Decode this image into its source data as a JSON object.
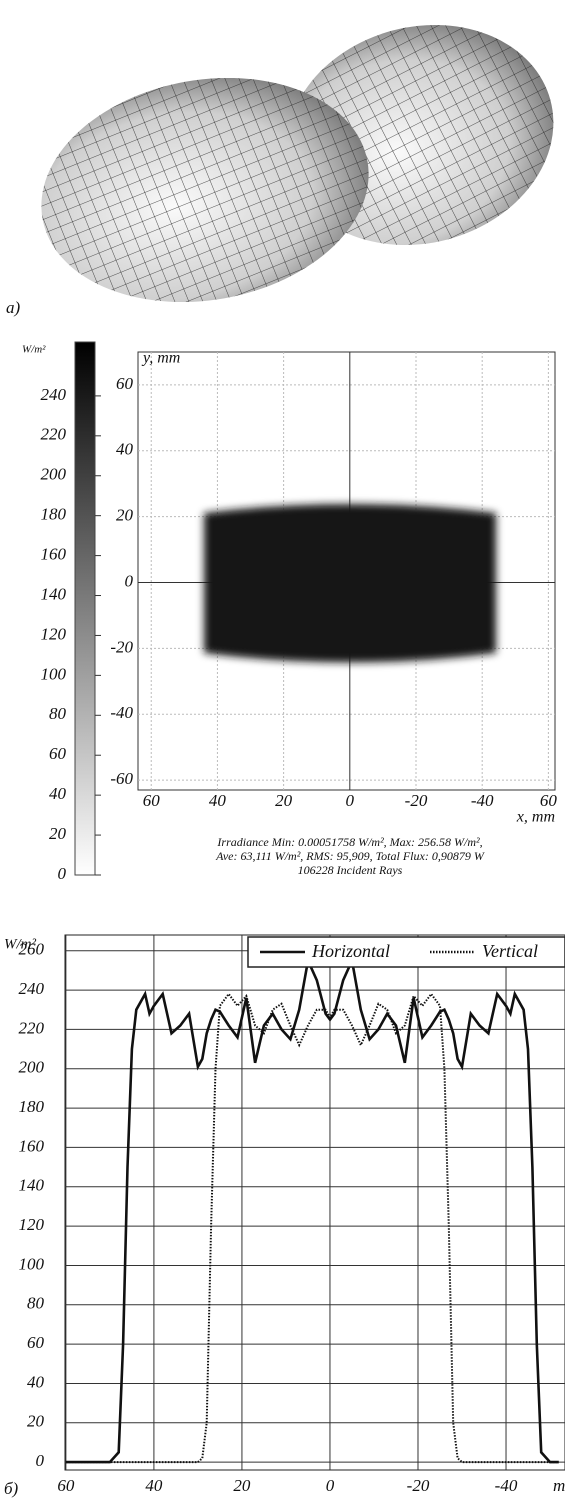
{
  "chart_data": [
    {
      "type": "heatmap",
      "panel_label": "a)",
      "colorbar_label": "W/m²",
      "colorbar_ticks": [
        0,
        20,
        40,
        60,
        80,
        100,
        120,
        140,
        160,
        180,
        200,
        220,
        240
      ],
      "clim": [
        0,
        267
      ],
      "xlabel": "x, mm",
      "ylabel": "y, mm",
      "xlim": [
        64,
        -62
      ],
      "ylim": [
        -63,
        70
      ],
      "xticks": [
        60,
        40,
        20,
        0,
        -20,
        -40,
        {
          "value": -60,
          "label": "60"
        }
      ],
      "yticks": [
        60,
        40,
        20,
        0,
        -20,
        -40,
        -60
      ],
      "grid": true,
      "caption": [
        "Irradiance   Min: 0.00051758 W/m², Max: 256.58 W/m²,",
        "Ave: 63,111 W/m², RMS: 95,909, Total Flux: 0,90879 W",
        "106228 Incident Rays"
      ]
    },
    {
      "type": "line",
      "panel_label": "б)",
      "ylabel": "W/m²",
      "xlabel": "m",
      "xlim": [
        60.2,
        -53.4
      ],
      "ylim": [
        -4,
        268
      ],
      "xticks": [
        60,
        40,
        20,
        0,
        -20,
        -40
      ],
      "yticks": [
        0,
        20,
        40,
        60,
        80,
        100,
        120,
        140,
        160,
        180,
        200,
        220,
        240,
        260
      ],
      "grid": true,
      "legend": "upper right",
      "x": [
        60,
        52,
        50,
        48,
        47,
        46,
        45,
        44,
        42,
        41,
        40,
        38,
        36,
        34,
        32,
        30,
        29,
        28,
        27,
        26,
        25,
        23,
        21,
        19,
        17,
        15,
        13,
        11,
        9,
        7,
        5,
        3,
        1,
        0,
        -1,
        -3,
        -5,
        -7,
        -9,
        -11,
        -13,
        -15,
        -17,
        -19,
        -21,
        -23,
        -25,
        -26,
        -27,
        -28,
        -29,
        -30,
        -32,
        -34,
        -36,
        -38,
        -40,
        -41,
        -42,
        -44,
        -45,
        -46,
        -47,
        -48,
        -50,
        -52
      ],
      "series": [
        {
          "name": "Horizontal",
          "color": "#111111",
          "dash": "solid",
          "values": [
            0,
            0,
            0,
            5,
            60,
            150,
            210,
            230,
            238,
            228,
            232,
            238,
            218,
            222,
            228,
            201,
            205,
            218,
            225,
            230,
            229,
            222,
            216,
            236,
            203,
            222,
            228,
            220,
            215,
            230,
            255,
            245,
            228,
            225,
            228,
            245,
            255,
            230,
            215,
            220,
            228,
            222,
            203,
            236,
            216,
            222,
            229,
            230,
            225,
            218,
            205,
            201,
            228,
            222,
            218,
            238,
            232,
            228,
            238,
            230,
            210,
            150,
            60,
            5,
            0,
            0
          ]
        },
        {
          "name": "Vertical",
          "color": "#111111",
          "dash": "dotted",
          "values": [
            0,
            0,
            0,
            0,
            0,
            0,
            0,
            0,
            0,
            0,
            0,
            0,
            0,
            0,
            0,
            0,
            2,
            20,
            120,
            200,
            232,
            238,
            232,
            237,
            222,
            218,
            230,
            233,
            222,
            212,
            222,
            230,
            230,
            226,
            230,
            230,
            222,
            212,
            222,
            233,
            230,
            218,
            222,
            237,
            232,
            238,
            232,
            200,
            120,
            20,
            2,
            0,
            0,
            0,
            0,
            0,
            0,
            0,
            0,
            0,
            0,
            0,
            0,
            0,
            0,
            0
          ]
        }
      ]
    }
  ]
}
